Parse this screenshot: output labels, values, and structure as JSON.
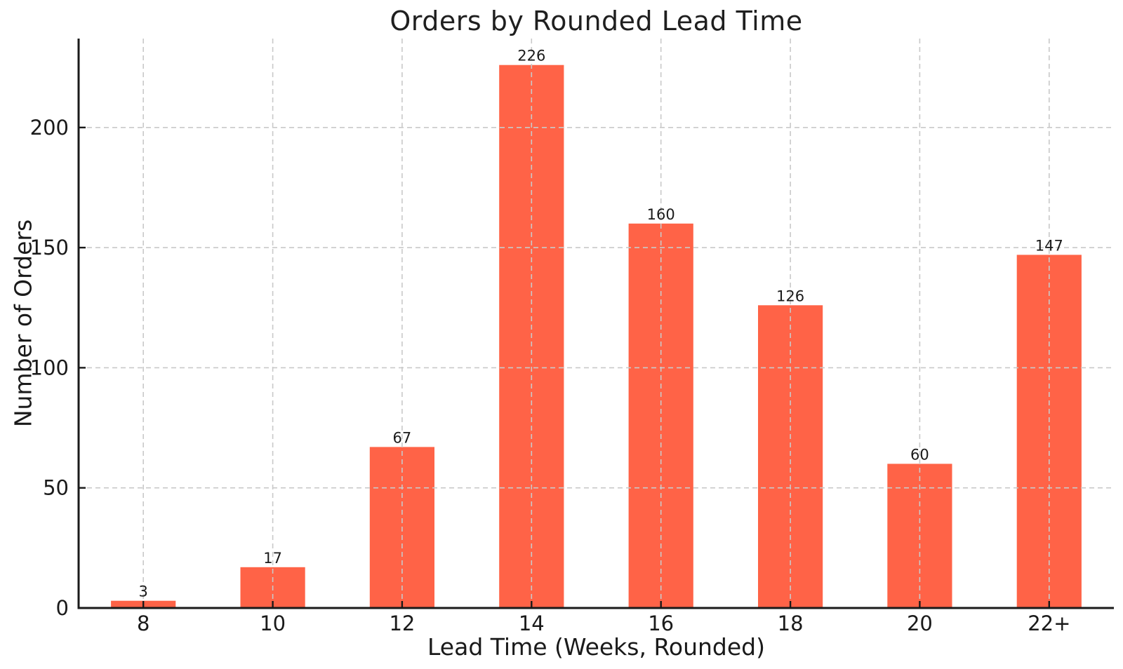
{
  "chart_data": {
    "type": "bar",
    "title": "Orders by Rounded Lead Time",
    "xlabel": "Lead Time (Weeks, Rounded)",
    "ylabel": "Number of Orders",
    "categories": [
      "8",
      "10",
      "12",
      "14",
      "16",
      "18",
      "20",
      "22+"
    ],
    "values": [
      3,
      17,
      67,
      226,
      160,
      126,
      60,
      147
    ],
    "bar_value_labels": [
      "3",
      "17",
      "67",
      "226",
      "160",
      "126",
      "60",
      "147"
    ],
    "yticks": [
      0,
      50,
      100,
      150,
      200
    ],
    "ylim": [
      0,
      237
    ],
    "grid": "dashed gridlines on both axes, drawn over bars",
    "legend": "none",
    "bar_color": "#FF6347",
    "grid_color": "#c9c9c9",
    "axis_color": "#1a1a1a",
    "text_color": "#1a1a1a",
    "bar_width_fraction": 0.5
  }
}
